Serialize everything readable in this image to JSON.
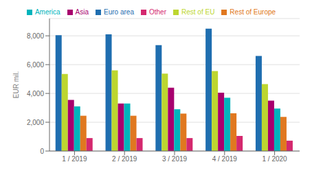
{
  "chart_data": {
    "type": "bar",
    "categories": [
      "1 / 2019",
      "2 / 2019",
      "3 / 2019",
      "4 / 2019",
      "1 / 2020"
    ],
    "series": [
      {
        "name": "Euro area",
        "color": "#1F6EB0",
        "values": [
          8050,
          8100,
          7350,
          8500,
          6600
        ]
      },
      {
        "name": "Rest of EU",
        "color": "#BDD630",
        "values": [
          5350,
          5600,
          5380,
          5550,
          4650
        ]
      },
      {
        "name": "Asia",
        "color": "#A8006E",
        "values": [
          3550,
          3300,
          4400,
          4050,
          3500
        ]
      },
      {
        "name": "America",
        "color": "#00B4BC",
        "values": [
          3100,
          3300,
          2900,
          3700,
          2950
        ]
      },
      {
        "name": "Rest of Europe",
        "color": "#E07820",
        "values": [
          2450,
          2450,
          2600,
          2620,
          2370
        ]
      },
      {
        "name": "Other",
        "color": "#D4286E",
        "values": [
          900,
          900,
          900,
          1050,
          720
        ]
      }
    ],
    "ylabel": "EUR mil.",
    "ylim": [
      0,
      9200
    ],
    "yticks": [
      0,
      {
        "value": 2000,
        "label": "2,000"
      },
      {
        "value": 4000,
        "label": "4,000"
      },
      {
        "value": 6000,
        "label": "6,000"
      },
      {
        "value": 8000,
        "label": "8,000"
      }
    ],
    "grid": true,
    "legend": "top"
  }
}
